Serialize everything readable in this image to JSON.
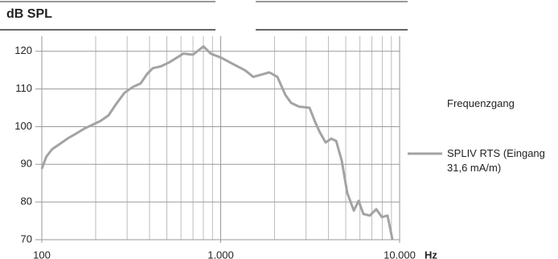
{
  "chart_data": {
    "type": "line",
    "title": "dB SPL",
    "x_label": "Hz",
    "legend_title": "Frequenzgang",
    "log_x": true,
    "grid": true,
    "xlim": [
      100,
      10000
    ],
    "xticks": [
      100,
      {
        "value": 1000,
        "label": "1.000"
      },
      {
        "value": 10000,
        "label": "10.000"
      }
    ],
    "ylim": [
      70,
      124
    ],
    "yticks": [
      70,
      80,
      90,
      100,
      110,
      120
    ],
    "x": [
      100,
      106,
      114,
      127,
      141,
      156,
      173,
      192,
      213,
      236,
      262,
      290,
      322,
      357,
      388,
      417,
      463,
      513,
      569,
      618,
      700,
      801,
      879,
      1005,
      1174,
      1371,
      1521,
      1687,
      1871,
      2075,
      2301,
      2473,
      2742,
      3139,
      3373,
      3590,
      3860,
      4150,
      4420,
      4750,
      5100,
      5550,
      5900,
      6280,
      6820,
      7410,
      7960,
      8560,
      9120
    ],
    "series": [
      {
        "name": "SPLIV RTS (Eingang 31,6 mA/m)",
        "color": "#a3a3a3",
        "values": [
          88.8,
          92,
          94,
          95.5,
          97,
          98.2,
          99.5,
          100.5,
          101.5,
          103,
          106.2,
          109,
          110.5,
          111.5,
          114,
          115.5,
          116,
          117,
          118.3,
          119.4,
          119.1,
          121.3,
          119.4,
          118.3,
          116.6,
          114.9,
          113.2,
          113.8,
          114.4,
          113.2,
          108.4,
          106.3,
          105.3,
          105,
          101.2,
          98.4,
          95.8,
          96.8,
          96.2,
          90.9,
          82.4,
          77.7,
          80.3,
          76.8,
          76.4,
          78.1,
          76,
          76.4,
          70
        ]
      }
    ]
  }
}
